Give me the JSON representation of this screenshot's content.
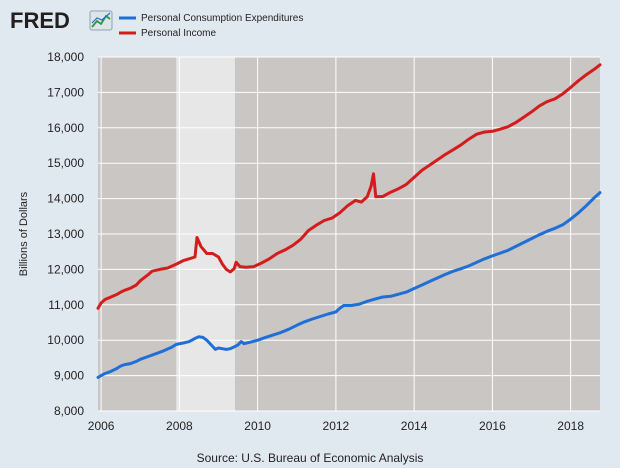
{
  "header": {
    "logo_text": "FRED"
  },
  "colors": {
    "page_background": "#e1e9f0",
    "plot_background": "#c9c6c3",
    "recession_shade": "#e7e7e7",
    "grid": "#ffffff",
    "pce_line": "#1f6fd6",
    "income_line": "#d41c1c"
  },
  "chart_data": {
    "type": "line",
    "title": "",
    "xlabel": "",
    "ylabel": "Billions of Dollars",
    "source": "Source: U.S. Bureau of Economic Analysis",
    "xlim": [
      2005.92,
      2018.75
    ],
    "ylim": [
      8000,
      18000
    ],
    "x_ticks": [
      {
        "value": 2006,
        "label": "2006"
      },
      {
        "value": 2008,
        "label": "2008"
      },
      {
        "value": 2010,
        "label": "2010"
      },
      {
        "value": 2012,
        "label": "2012"
      },
      {
        "value": 2014,
        "label": "2014"
      },
      {
        "value": 2016,
        "label": "2016"
      },
      {
        "value": 2018,
        "label": "2018"
      }
    ],
    "y_ticks": [
      {
        "value": 8000,
        "label": "8,000"
      },
      {
        "value": 9000,
        "label": "9,000"
      },
      {
        "value": 10000,
        "label": "10,000"
      },
      {
        "value": 11000,
        "label": "11,000"
      },
      {
        "value": 12000,
        "label": "12,000"
      },
      {
        "value": 13000,
        "label": "13,000"
      },
      {
        "value": 14000,
        "label": "14,000"
      },
      {
        "value": 15000,
        "label": "15,000"
      },
      {
        "value": 16000,
        "label": "16,000"
      },
      {
        "value": 17000,
        "label": "17,000"
      },
      {
        "value": 18000,
        "label": "18,000"
      }
    ],
    "grid": true,
    "legend_position": "top-left",
    "recession": {
      "start": 2007.92,
      "end": 2009.42
    },
    "series": [
      {
        "name": "Personal Consumption Expenditures",
        "color": "#1f6fd6",
        "points": [
          [
            2005.92,
            8950
          ],
          [
            2006.0,
            9000
          ],
          [
            2006.1,
            9060
          ],
          [
            2006.25,
            9120
          ],
          [
            2006.4,
            9200
          ],
          [
            2006.5,
            9270
          ],
          [
            2006.6,
            9310
          ],
          [
            2006.75,
            9340
          ],
          [
            2006.9,
            9400
          ],
          [
            2007.0,
            9460
          ],
          [
            2007.2,
            9540
          ],
          [
            2007.4,
            9620
          ],
          [
            2007.6,
            9700
          ],
          [
            2007.8,
            9800
          ],
          [
            2007.92,
            9880
          ],
          [
            2008.1,
            9920
          ],
          [
            2008.25,
            9960
          ],
          [
            2008.4,
            10050
          ],
          [
            2008.5,
            10100
          ],
          [
            2008.6,
            10080
          ],
          [
            2008.7,
            10000
          ],
          [
            2008.8,
            9880
          ],
          [
            2008.92,
            9740
          ],
          [
            2009.0,
            9780
          ],
          [
            2009.1,
            9760
          ],
          [
            2009.2,
            9740
          ],
          [
            2009.3,
            9760
          ],
          [
            2009.4,
            9810
          ],
          [
            2009.5,
            9870
          ],
          [
            2009.58,
            9960
          ],
          [
            2009.65,
            9900
          ],
          [
            2009.8,
            9940
          ],
          [
            2010.0,
            10000
          ],
          [
            2010.2,
            10080
          ],
          [
            2010.4,
            10150
          ],
          [
            2010.6,
            10220
          ],
          [
            2010.8,
            10310
          ],
          [
            2011.0,
            10420
          ],
          [
            2011.2,
            10520
          ],
          [
            2011.4,
            10600
          ],
          [
            2011.6,
            10670
          ],
          [
            2011.8,
            10740
          ],
          [
            2012.0,
            10800
          ],
          [
            2012.1,
            10900
          ],
          [
            2012.2,
            10980
          ],
          [
            2012.4,
            10980
          ],
          [
            2012.6,
            11020
          ],
          [
            2012.8,
            11100
          ],
          [
            2013.0,
            11160
          ],
          [
            2013.2,
            11220
          ],
          [
            2013.4,
            11240
          ],
          [
            2013.6,
            11300
          ],
          [
            2013.8,
            11360
          ],
          [
            2014.0,
            11460
          ],
          [
            2014.2,
            11560
          ],
          [
            2014.4,
            11660
          ],
          [
            2014.6,
            11760
          ],
          [
            2014.8,
            11860
          ],
          [
            2015.0,
            11950
          ],
          [
            2015.2,
            12020
          ],
          [
            2015.4,
            12100
          ],
          [
            2015.6,
            12200
          ],
          [
            2015.8,
            12300
          ],
          [
            2016.0,
            12380
          ],
          [
            2016.2,
            12460
          ],
          [
            2016.4,
            12540
          ],
          [
            2016.6,
            12650
          ],
          [
            2016.8,
            12760
          ],
          [
            2017.0,
            12870
          ],
          [
            2017.2,
            12980
          ],
          [
            2017.4,
            13080
          ],
          [
            2017.6,
            13160
          ],
          [
            2017.8,
            13260
          ],
          [
            2018.0,
            13420
          ],
          [
            2018.2,
            13600
          ],
          [
            2018.4,
            13800
          ],
          [
            2018.6,
            14020
          ],
          [
            2018.75,
            14170
          ]
        ]
      },
      {
        "name": "Personal Income",
        "color": "#d41c1c",
        "points": [
          [
            2005.92,
            10900
          ],
          [
            2006.0,
            11050
          ],
          [
            2006.1,
            11150
          ],
          [
            2006.25,
            11220
          ],
          [
            2006.4,
            11290
          ],
          [
            2006.5,
            11360
          ],
          [
            2006.6,
            11410
          ],
          [
            2006.75,
            11470
          ],
          [
            2006.9,
            11560
          ],
          [
            2007.0,
            11680
          ],
          [
            2007.2,
            11850
          ],
          [
            2007.3,
            11950
          ],
          [
            2007.5,
            12000
          ],
          [
            2007.7,
            12040
          ],
          [
            2007.92,
            12150
          ],
          [
            2008.1,
            12250
          ],
          [
            2008.25,
            12300
          ],
          [
            2008.4,
            12350
          ],
          [
            2008.45,
            12900
          ],
          [
            2008.55,
            12650
          ],
          [
            2008.7,
            12450
          ],
          [
            2008.85,
            12450
          ],
          [
            2009.0,
            12350
          ],
          [
            2009.1,
            12150
          ],
          [
            2009.2,
            12000
          ],
          [
            2009.3,
            11930
          ],
          [
            2009.4,
            12020
          ],
          [
            2009.45,
            12200
          ],
          [
            2009.55,
            12080
          ],
          [
            2009.7,
            12060
          ],
          [
            2009.9,
            12080
          ],
          [
            2010.1,
            12180
          ],
          [
            2010.3,
            12300
          ],
          [
            2010.5,
            12450
          ],
          [
            2010.7,
            12550
          ],
          [
            2010.9,
            12680
          ],
          [
            2011.1,
            12850
          ],
          [
            2011.3,
            13100
          ],
          [
            2011.5,
            13250
          ],
          [
            2011.7,
            13380
          ],
          [
            2011.9,
            13450
          ],
          [
            2012.1,
            13600
          ],
          [
            2012.3,
            13800
          ],
          [
            2012.5,
            13950
          ],
          [
            2012.65,
            13900
          ],
          [
            2012.8,
            14050
          ],
          [
            2012.9,
            14350
          ],
          [
            2012.96,
            14700
          ],
          [
            2013.02,
            14050
          ],
          [
            2013.2,
            14060
          ],
          [
            2013.4,
            14180
          ],
          [
            2013.6,
            14280
          ],
          [
            2013.8,
            14400
          ],
          [
            2014.0,
            14600
          ],
          [
            2014.2,
            14800
          ],
          [
            2014.4,
            14950
          ],
          [
            2014.6,
            15100
          ],
          [
            2014.8,
            15250
          ],
          [
            2015.0,
            15380
          ],
          [
            2015.2,
            15520
          ],
          [
            2015.4,
            15680
          ],
          [
            2015.6,
            15820
          ],
          [
            2015.8,
            15880
          ],
          [
            2016.0,
            15900
          ],
          [
            2016.2,
            15960
          ],
          [
            2016.4,
            16030
          ],
          [
            2016.6,
            16150
          ],
          [
            2016.8,
            16300
          ],
          [
            2017.0,
            16450
          ],
          [
            2017.2,
            16620
          ],
          [
            2017.4,
            16740
          ],
          [
            2017.6,
            16820
          ],
          [
            2017.8,
            16960
          ],
          [
            2018.0,
            17140
          ],
          [
            2018.2,
            17330
          ],
          [
            2018.4,
            17500
          ],
          [
            2018.6,
            17650
          ],
          [
            2018.75,
            17780
          ]
        ]
      }
    ]
  }
}
